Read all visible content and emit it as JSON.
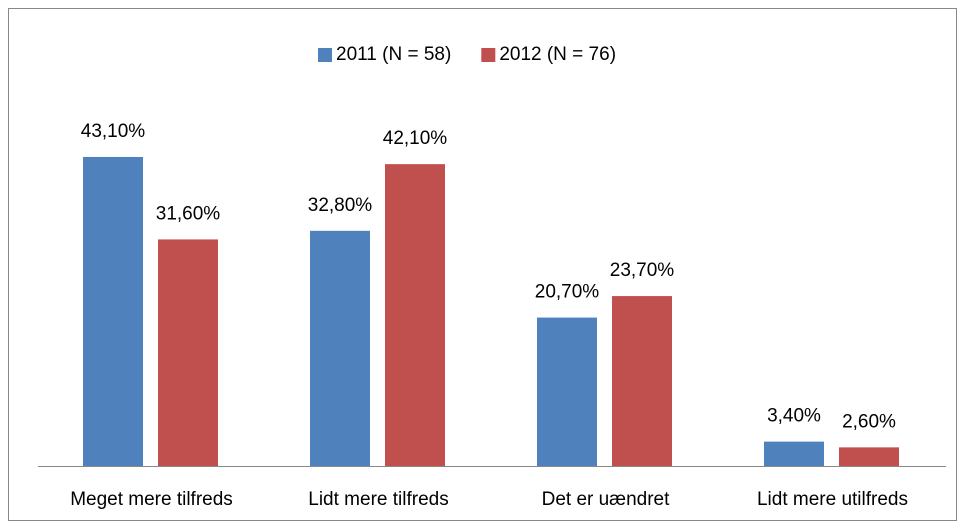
{
  "chart_data": {
    "type": "bar",
    "categories": [
      "Meget mere tilfreds",
      "Lidt mere tilfreds",
      "Det er uændret",
      "Lidt mere utilfreds"
    ],
    "series": [
      {
        "name": "2011 (N = 58)",
        "color": "#4f81bd",
        "values": [
          43.1,
          32.8,
          20.7,
          3.4
        ],
        "value_labels": [
          "43,10%",
          "32,80%",
          "20,70%",
          "3,40%"
        ]
      },
      {
        "name": "2012 (N = 76)",
        "color": "#c0504d",
        "values": [
          31.6,
          42.1,
          23.7,
          2.6
        ],
        "value_labels": [
          "31,60%",
          "42,10%",
          "23,70%",
          "2,60%"
        ]
      }
    ],
    "legend": "top"
  }
}
